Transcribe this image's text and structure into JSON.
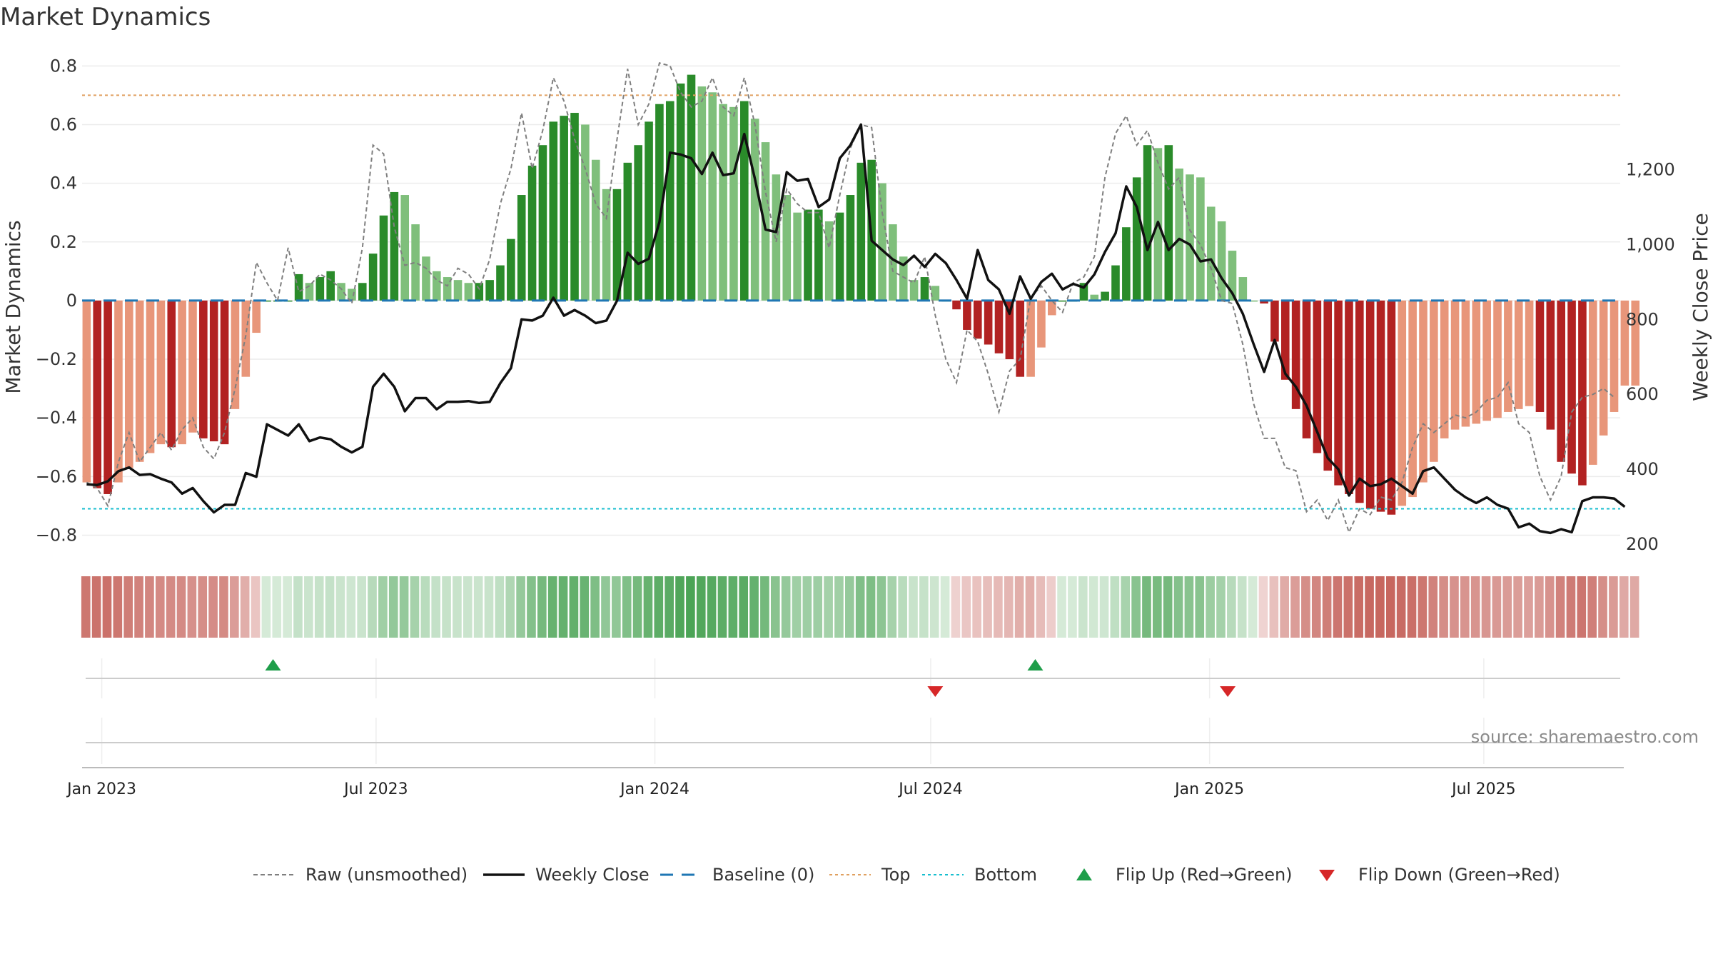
{
  "title": "Market Dynamics",
  "source": "source: sharemaestro.com",
  "colors": {
    "green_strong": "#2a8b2a",
    "green_light": "#7fbf7b",
    "red_strong": "#b22222",
    "red_light": "#e8967a",
    "raw": "#7f7f7f",
    "close": "#111111",
    "baseline": "#1f77b4",
    "top": "#e0a060",
    "bottom": "#17becf",
    "flip_up": "#1f9e4a",
    "flip_down": "#d62728"
  },
  "chart_data": {
    "type": "bar",
    "xlabel": "",
    "ylabel": "Market Dynamics",
    "y2label": "Weekly Close Price",
    "ylim": [
      -0.85,
      0.83
    ],
    "y2lim": [
      185,
      1500
    ],
    "yticks": [
      "−0.8",
      "−0.6",
      "−0.4",
      "−0.2",
      "0",
      "0.2",
      "0.4",
      "0.6",
      "0.8"
    ],
    "y2ticks": [
      "200",
      "400",
      "600",
      "800",
      "1,000",
      "1,200"
    ],
    "xlim": [
      "2022-12-19",
      "2025-09-29"
    ],
    "xticks": [
      {
        "date": "2023-01-01",
        "label": "Jan 2023"
      },
      {
        "date": "2023-07-01",
        "label": "Jul 2023"
      },
      {
        "date": "2024-01-01",
        "label": "Jan 2024"
      },
      {
        "date": "2024-07-01",
        "label": "Jul 2024"
      },
      {
        "date": "2025-01-01",
        "label": "Jan 2025"
      },
      {
        "date": "2025-07-01",
        "label": "Jul 2025"
      }
    ],
    "start_week": "2022-12-19",
    "top_line": 0.7,
    "bottom_line": -0.71,
    "baseline": 0,
    "smoothed": [
      -0.62,
      -0.64,
      -0.66,
      -0.62,
      -0.57,
      -0.55,
      -0.52,
      -0.49,
      -0.5,
      -0.49,
      -0.45,
      -0.47,
      -0.48,
      -0.49,
      -0.37,
      -0.26,
      -0.11,
      0.0,
      0.0,
      0.0,
      0.09,
      0.06,
      0.08,
      0.1,
      0.06,
      0.04,
      0.06,
      0.16,
      0.29,
      0.37,
      0.36,
      0.26,
      0.15,
      0.1,
      0.08,
      0.07,
      0.06,
      0.06,
      0.07,
      0.12,
      0.21,
      0.36,
      0.46,
      0.53,
      0.61,
      0.63,
      0.64,
      0.6,
      0.48,
      0.38,
      0.38,
      0.47,
      0.53,
      0.61,
      0.67,
      0.68,
      0.74,
      0.77,
      0.73,
      0.71,
      0.67,
      0.66,
      0.68,
      0.62,
      0.54,
      0.43,
      0.36,
      0.3,
      0.31,
      0.31,
      0.27,
      0.3,
      0.36,
      0.47,
      0.48,
      0.4,
      0.26,
      0.15,
      0.07,
      0.08,
      0.05,
      0.0,
      -0.03,
      -0.1,
      -0.13,
      -0.15,
      -0.18,
      -0.2,
      -0.26,
      -0.26,
      -0.16,
      -0.05,
      0.0,
      0.0,
      0.06,
      0.02,
      0.03,
      0.12,
      0.25,
      0.42,
      0.53,
      0.52,
      0.53,
      0.45,
      0.43,
      0.42,
      0.32,
      0.27,
      0.17,
      0.08,
      0.0,
      -0.01,
      -0.14,
      -0.27,
      -0.37,
      -0.47,
      -0.52,
      -0.58,
      -0.63,
      -0.66,
      -0.69,
      -0.71,
      -0.72,
      -0.73,
      -0.7,
      -0.67,
      -0.62,
      -0.55,
      -0.47,
      -0.44,
      -0.43,
      -0.42,
      -0.41,
      -0.4,
      -0.38,
      -0.37,
      -0.36,
      -0.38,
      -0.44,
      -0.55,
      -0.59,
      -0.63,
      -0.56,
      -0.46,
      -0.38,
      -0.29,
      -0.29
    ],
    "raw": [
      -0.62,
      -0.64,
      -0.7,
      -0.55,
      -0.45,
      -0.55,
      -0.5,
      -0.45,
      -0.51,
      -0.44,
      -0.4,
      -0.5,
      -0.54,
      -0.45,
      -0.3,
      -0.12,
      0.13,
      0.06,
      0.0,
      0.18,
      0.03,
      0.05,
      0.09,
      0.07,
      0.04,
      -0.01,
      0.18,
      0.53,
      0.5,
      0.25,
      0.12,
      0.13,
      0.11,
      0.07,
      0.05,
      0.11,
      0.09,
      0.04,
      0.14,
      0.33,
      0.45,
      0.64,
      0.45,
      0.58,
      0.76,
      0.68,
      0.55,
      0.45,
      0.33,
      0.28,
      0.55,
      0.79,
      0.6,
      0.67,
      0.81,
      0.8,
      0.71,
      0.66,
      0.68,
      0.76,
      0.66,
      0.63,
      0.76,
      0.6,
      0.37,
      0.2,
      0.38,
      0.33,
      0.3,
      0.3,
      0.18,
      0.36,
      0.52,
      0.6,
      0.59,
      0.3,
      0.1,
      0.08,
      0.06,
      0.15,
      -0.05,
      -0.2,
      -0.28,
      -0.1,
      -0.14,
      -0.25,
      -0.38,
      -0.24,
      -0.2,
      0.01,
      0.05,
      0.0,
      -0.04,
      0.06,
      0.08,
      0.15,
      0.42,
      0.57,
      0.63,
      0.53,
      0.58,
      0.47,
      0.38,
      0.42,
      0.24,
      0.19,
      0.11,
      0.0,
      -0.01,
      -0.15,
      -0.35,
      -0.47,
      -0.47,
      -0.57,
      -0.58,
      -0.72,
      -0.68,
      -0.75,
      -0.68,
      -0.79,
      -0.71,
      -0.73,
      -0.67,
      -0.68,
      -0.62,
      -0.5,
      -0.42,
      -0.45,
      -0.42,
      -0.39,
      -0.4,
      -0.38,
      -0.34,
      -0.33,
      -0.28,
      -0.42,
      -0.45,
      -0.6,
      -0.68,
      -0.6,
      -0.38,
      -0.33,
      -0.32,
      -0.3,
      -0.33
    ],
    "close": [
      360,
      358,
      368,
      395,
      405,
      385,
      387,
      375,
      365,
      335,
      350,
      315,
      285,
      305,
      305,
      390,
      380,
      520,
      505,
      490,
      520,
      475,
      485,
      480,
      460,
      445,
      460,
      620,
      655,
      620,
      555,
      590,
      590,
      560,
      580,
      580,
      582,
      577,
      580,
      630,
      670,
      800,
      797,
      810,
      858,
      810,
      825,
      810,
      790,
      797,
      850,
      978,
      948,
      962,
      1060,
      1245,
      1240,
      1230,
      1188,
      1245,
      1185,
      1190,
      1295,
      1175,
      1040,
      1033,
      1193,
      1170,
      1175,
      1100,
      1120,
      1230,
      1265,
      1320,
      1010,
      985,
      960,
      945,
      970,
      940,
      975,
      950,
      905,
      855,
      985,
      905,
      880,
      815,
      915,
      855,
      900,
      922,
      880,
      895,
      885,
      920,
      980,
      1030,
      1155,
      1100,
      985,
      1060,
      985,
      1015,
      1000,
      955,
      960,
      910,
      870,
      815,
      735,
      660,
      745,
      655,
      620,
      570,
      500,
      430,
      400,
      330,
      375,
      355,
      360,
      375,
      355,
      335,
      395,
      405,
      375,
      345,
      325,
      310,
      325,
      305,
      295,
      245,
      255,
      235,
      230,
      240,
      232,
      315,
      325,
      325,
      322,
      300
    ],
    "flips": [
      {
        "date": "2023-04-24",
        "direction": "up"
      },
      {
        "date": "2024-07-04",
        "direction": "down"
      },
      {
        "date": "2024-09-08",
        "direction": "up"
      },
      {
        "date": "2025-01-13",
        "direction": "down"
      }
    ]
  },
  "legend": {
    "items": [
      {
        "label": "Raw (unsmoothed)",
        "icon": "dashed-gray-line"
      },
      {
        "label": "Weekly Close",
        "icon": "solid-black-line"
      },
      {
        "label": "Baseline (0)",
        "icon": "dashed-blue-line"
      },
      {
        "label": "Top",
        "icon": "dotted-orange-line"
      },
      {
        "label": "Bottom",
        "icon": "dotted-cyan-line"
      },
      {
        "label": "Flip Up (Red→Green)",
        "icon": "green-triangle-up"
      },
      {
        "label": "Flip Down (Green→Red)",
        "icon": "red-triangle-down"
      }
    ]
  }
}
